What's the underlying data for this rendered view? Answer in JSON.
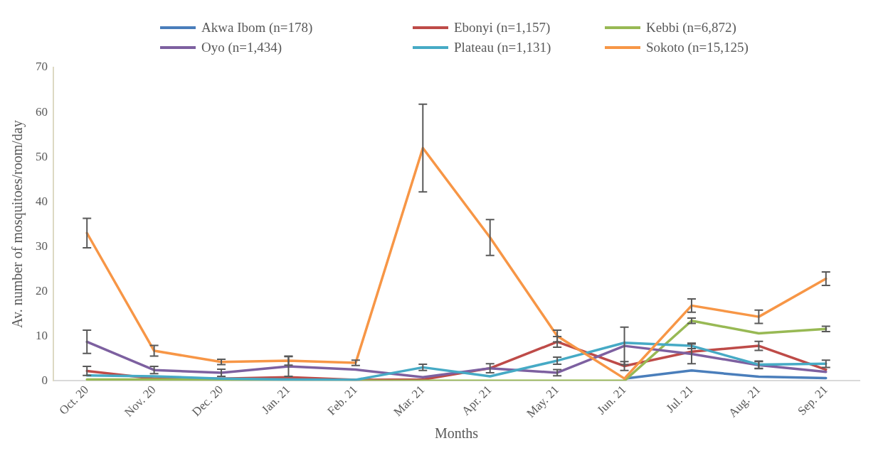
{
  "chart_data": {
    "type": "line",
    "xlabel": "Months",
    "ylabel": "Av. number of mosquitoes/room/day",
    "categories": [
      "Oct. 20",
      "Nov. 20",
      "Dec. 20",
      "Jan. 21",
      "Feb. 21",
      "Mar. 21",
      "Apr. 21",
      "May. 21",
      "Jun. 21",
      "Jul. 21",
      "Aug. 21",
      "Sep. 21"
    ],
    "series": [
      {
        "name": "Akwa Ibom (n=178)",
        "color": "#4a7ebb",
        "values": [
          null,
          null,
          null,
          null,
          null,
          null,
          null,
          null,
          0.5,
          2.3,
          0.9,
          0.6
        ],
        "errors": [
          null,
          null,
          null,
          null,
          null,
          null,
          null,
          null,
          null,
          null,
          null,
          null
        ]
      },
      {
        "name": "Ebonyi (n=1,157)",
        "color": "#be4b48",
        "values": [
          2.2,
          0.5,
          0.5,
          0.8,
          0.2,
          0.3,
          2.8,
          8.7,
          3.3,
          6.5,
          7.8,
          2.5
        ],
        "errors": [
          1,
          null,
          null,
          null,
          null,
          null,
          1,
          1.2,
          1,
          null,
          1,
          null
        ]
      },
      {
        "name": "Kebbi (n=6,872)",
        "color": "#98b954",
        "values": [
          0.3,
          0.3,
          0.2,
          0,
          0,
          0,
          0,
          0,
          0,
          13.4,
          10.6,
          11.6
        ],
        "errors": [
          null,
          null,
          null,
          null,
          null,
          null,
          null,
          null,
          null,
          0.6,
          null,
          0.6
        ]
      },
      {
        "name": "Oyo (n=1,434)",
        "color": "#7d60a0",
        "values": [
          8.7,
          2.4,
          1.8,
          3.2,
          2.5,
          0.8,
          2.8,
          1.8,
          7.8,
          6.0,
          3.5,
          2.0
        ],
        "errors": [
          2.6,
          0.8,
          0.8,
          2.2,
          null,
          null,
          null,
          0.7,
          4.2,
          2.2,
          0.8,
          null
        ]
      },
      {
        "name": "Plateau (n=1,131)",
        "color": "#46aac5",
        "values": [
          1.2,
          1.0,
          0.5,
          0.3,
          0.2,
          3.0,
          1.0,
          4.5,
          8.5,
          7.8,
          3.6,
          3.8
        ],
        "errors": [
          null,
          null,
          null,
          null,
          null,
          0.7,
          null,
          0.8,
          null,
          0.6,
          0.8,
          0.8
        ]
      },
      {
        "name": "Sokoto (n=15,125)",
        "color": "#f79646",
        "values": [
          33,
          6.7,
          4.2,
          4.5,
          4.0,
          52,
          32,
          10,
          0.5,
          16.8,
          14.3,
          22.8
        ],
        "errors": [
          3.3,
          1.2,
          0.6,
          1,
          0.6,
          9.8,
          4,
          1.3,
          null,
          1.5,
          1.5,
          1.5
        ]
      }
    ],
    "ylim": [
      0,
      70
    ],
    "yticks": [
      0,
      10,
      20,
      30,
      40,
      50,
      60,
      70
    ],
    "grid": false,
    "legend": "top",
    "line_style": "solid"
  }
}
